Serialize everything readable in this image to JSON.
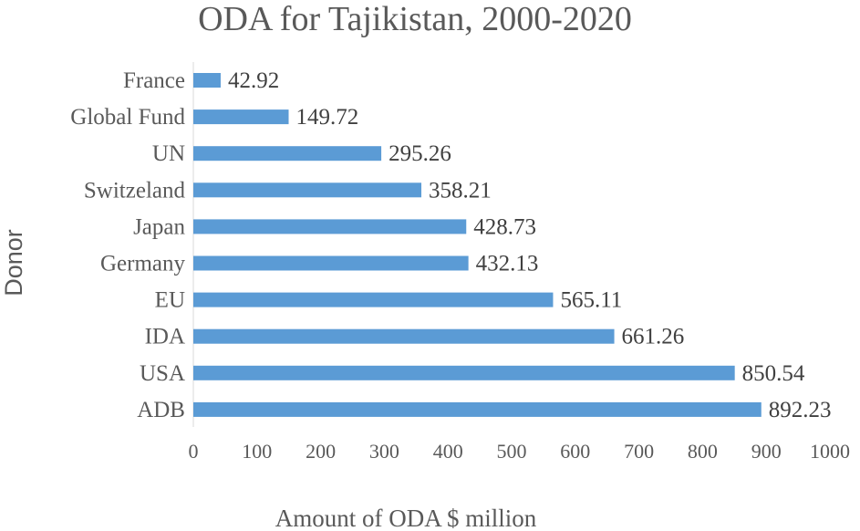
{
  "chart_data": {
    "type": "bar",
    "orientation": "horizontal",
    "title": "ODA for Tajikistan,  2000-2020",
    "xlabel": "Amount of ODA $ million",
    "ylabel": "Donor",
    "categories": [
      "France",
      "Global Fund",
      "UN",
      "Switzeland",
      "Japan",
      "Germany",
      "EU",
      "IDA",
      "USA",
      "ADB"
    ],
    "values": [
      42.92,
      149.72,
      295.26,
      358.21,
      428.73,
      432.13,
      565.11,
      661.26,
      850.54,
      892.23
    ],
    "value_labels": [
      "42.92",
      "149.72",
      "295.26",
      "358.21",
      "428.73",
      "432.13",
      "565.11",
      "661.26",
      "850.54",
      "892.23"
    ],
    "xlim": [
      0,
      1000
    ],
    "xticks": [
      "0",
      "100",
      "200",
      "300",
      "400",
      "500",
      "600",
      "700",
      "800",
      "900",
      "1000"
    ],
    "bar_color": "#5b9bd5",
    "grid": false,
    "legend": "none"
  }
}
